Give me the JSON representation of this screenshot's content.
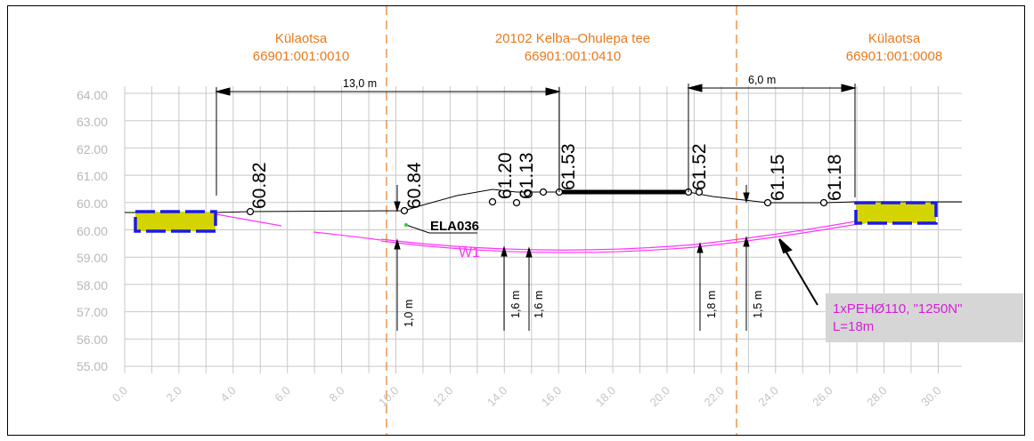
{
  "parcels": [
    {
      "name": "Külaotsa",
      "id": "66901:001:0010"
    },
    {
      "name": "20102 Kelba–Ohulepa tee",
      "id": "66901:001:0410"
    },
    {
      "name": "Külaotsa",
      "id": "66901:001:0008"
    }
  ],
  "dimensions": {
    "top_left": "13,0  m",
    "top_right": "6,0  m",
    "depths": [
      "1,0  m",
      "1,6  m",
      "1,6  m",
      "1,8  m",
      "1,5  m"
    ]
  },
  "elevations": [
    "60.82",
    "60.84",
    "61.20",
    "61.13",
    "61.53",
    "61.52",
    "61.15",
    "61.18"
  ],
  "y_axis": {
    "labels": [
      "64.00",
      "63.00",
      "62.00",
      "61.00",
      "60.00",
      "60.00",
      "59.00",
      "58.00",
      "57.00",
      "56.00",
      "55.00"
    ]
  },
  "x_axis": {
    "labels": [
      "0.0",
      "2.0",
      "4.0",
      "6.0",
      "8.0",
      "10.0",
      "12.0",
      "14.0",
      "16.0",
      "18.0",
      "20.0",
      "22.0",
      "24.0",
      "26.0",
      "28.0",
      "30.0"
    ]
  },
  "labels": {
    "cable_id": "ELA036",
    "pipe_id": "W1"
  },
  "note": {
    "line1": "1xPEHØ110, \"1250N\"",
    "line2": "L=18m"
  },
  "colors": {
    "parcel_text": "#e87a1e",
    "pipe": "#ff33ff",
    "note_text": "#d61fd6",
    "note_bg": "#d6d6d6",
    "grid": "#c8c8c8",
    "culvert_fill": "#d4d400",
    "culvert_border": "#1a1ae6"
  }
}
